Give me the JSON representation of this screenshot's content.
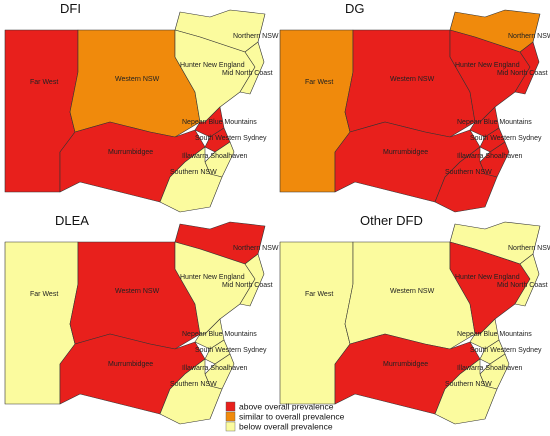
{
  "panels": [
    {
      "title": "DFI",
      "regions": [
        {
          "name": "Far West",
          "color": "#e8201c"
        },
        {
          "name": "Western NSW",
          "color": "#f08a0c"
        },
        {
          "name": "Northern NSW",
          "color": "#fbfb9e"
        },
        {
          "name": "Hunter New England",
          "color": "#fbfb9e"
        },
        {
          "name": "Mid North Coast",
          "color": "#fbfb9e"
        },
        {
          "name": "Nepean Blue Mountains",
          "color": "#e8201c"
        },
        {
          "name": "South Western Sydney",
          "color": "#e8201c"
        },
        {
          "name": "Murrumbidgee",
          "color": "#e8201c"
        },
        {
          "name": "Illawarra Shoalhaven",
          "color": "#fbfb9e"
        },
        {
          "name": "Southern NSW",
          "color": "#fbfb9e"
        }
      ]
    },
    {
      "title": "DG",
      "regions": [
        {
          "name": "Far West",
          "color": "#f08a0c"
        },
        {
          "name": "Western NSW",
          "color": "#e8201c"
        },
        {
          "name": "Northern NSW",
          "color": "#f08a0c"
        },
        {
          "name": "Hunter New England",
          "color": "#e8201c"
        },
        {
          "name": "Mid North Coast",
          "color": "#e8201c"
        },
        {
          "name": "Nepean Blue Mountains",
          "color": "#e8201c"
        },
        {
          "name": "South Western Sydney",
          "color": "#e8201c"
        },
        {
          "name": "Murrumbidgee",
          "color": "#e8201c"
        },
        {
          "name": "Illawarra Shoalhaven",
          "color": "#e8201c"
        },
        {
          "name": "Southern NSW",
          "color": "#e8201c"
        }
      ]
    },
    {
      "title": "DLEA",
      "regions": [
        {
          "name": "Far West",
          "color": "#fbfb9e"
        },
        {
          "name": "Western NSW",
          "color": "#e8201c"
        },
        {
          "name": "Northern NSW",
          "color": "#e8201c"
        },
        {
          "name": "Hunter New England",
          "color": "#fbfb9e"
        },
        {
          "name": "Mid North Coast",
          "color": "#fbfb9e"
        },
        {
          "name": "Nepean Blue Mountains",
          "color": "#fbfb9e"
        },
        {
          "name": "South Western Sydney",
          "color": "#fbfb9e"
        },
        {
          "name": "Murrumbidgee",
          "color": "#e8201c"
        },
        {
          "name": "Illawarra Shoalhaven",
          "color": "#fbfb9e"
        },
        {
          "name": "Southern NSW",
          "color": "#fbfb9e"
        }
      ]
    },
    {
      "title": "Other DFD",
      "regions": [
        {
          "name": "Far West",
          "color": "#fbfb9e"
        },
        {
          "name": "Western NSW",
          "color": "#fbfb9e"
        },
        {
          "name": "Northern NSW",
          "color": "#fbfb9e"
        },
        {
          "name": "Hunter New England",
          "color": "#e8201c"
        },
        {
          "name": "Mid North Coast",
          "color": "#fbfb9e"
        },
        {
          "name": "Nepean Blue Mountains",
          "color": "#fbfb9e"
        },
        {
          "name": "South Western Sydney",
          "color": "#fbfb9e"
        },
        {
          "name": "Murrumbidgee",
          "color": "#e8201c"
        },
        {
          "name": "Illawarra Shoalhaven",
          "color": "#fbfb9e"
        },
        {
          "name": "Southern NSW",
          "color": "#fbfb9e"
        }
      ]
    }
  ],
  "legend": [
    {
      "label": "above overall prevalence",
      "color": "#e8201c"
    },
    {
      "label": "similar to overall prevalence",
      "color": "#f08a0c"
    },
    {
      "label": "below overall prevalence",
      "color": "#fbfb9e"
    }
  ]
}
